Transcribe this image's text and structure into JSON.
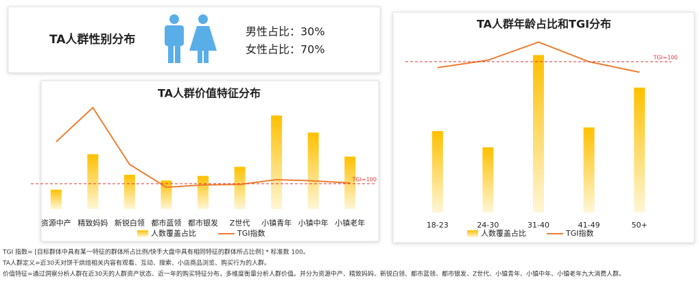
{
  "gender": {
    "title": "TA人群性别分布",
    "male": "男性占比：30%",
    "female": "女性占比：70%"
  },
  "chart_data": [
    {
      "type": "bar-line",
      "title": "TA人群价值特征分布",
      "categories": [
        "资源中产",
        "精致妈妈",
        "新锐白领",
        "都市蓝领",
        "都市银发",
        "Z世代",
        "小镇青年",
        "小镇中年",
        "小镇老年"
      ],
      "series": [
        {
          "name": "人数覆盖占比",
          "color": "#ffc000",
          "values": [
            17,
            48,
            30,
            25,
            29,
            37,
            82,
            67,
            46
          ]
        },
        {
          "name": "TGI指数",
          "color": "#ed7d31",
          "axis": "y2",
          "values": [
            265,
            400,
            176,
            86,
            95,
            97,
            116,
            111,
            103
          ]
        }
      ],
      "ylim": [
        0,
        100
      ],
      "y2lim": [
        0,
        450
      ],
      "reference": {
        "value": 100,
        "label": "TGI=100"
      }
    },
    {
      "type": "bar-line",
      "title": "TA人群年龄占比和TGI分布",
      "categories": [
        "18-23",
        "24-30",
        "31-40",
        "41-49",
        "50+"
      ],
      "series": [
        {
          "name": "人数覆盖占比",
          "color": "#ffc000",
          "values": [
            45,
            36,
            87,
            47,
            69
          ]
        },
        {
          "name": "TGI指数",
          "color": "#ed7d31",
          "axis": "y2",
          "values": [
            96,
            101,
            113,
            100,
            93
          ]
        }
      ],
      "ylim": [
        0,
        100
      ],
      "y2lim": [
        0,
        120
      ],
      "reference": {
        "value": 100,
        "label": "TGI=100"
      }
    }
  ],
  "notes": [
    "TGI 指数= [目标群体中具有某一特征的群体所占比例/快手大盘中具有相同特征的群体所占比例] * 标准数 100。",
    "TA人群定义=近30天对饼干烘焙相关内容有观看、互动、搜索、小店商品浏览、购买行为的人群。",
    "价值特征=通过洞察分析人群在近30天的人群资产状态、近一年的购买特征分布，多维度衡量分析人群价值。并分为资源中产、精致妈妈、新锐白领、都市蓝领、都市银发、Z世代、小镇青年、小镇中年、小镇老年九大消费人群。"
  ]
}
